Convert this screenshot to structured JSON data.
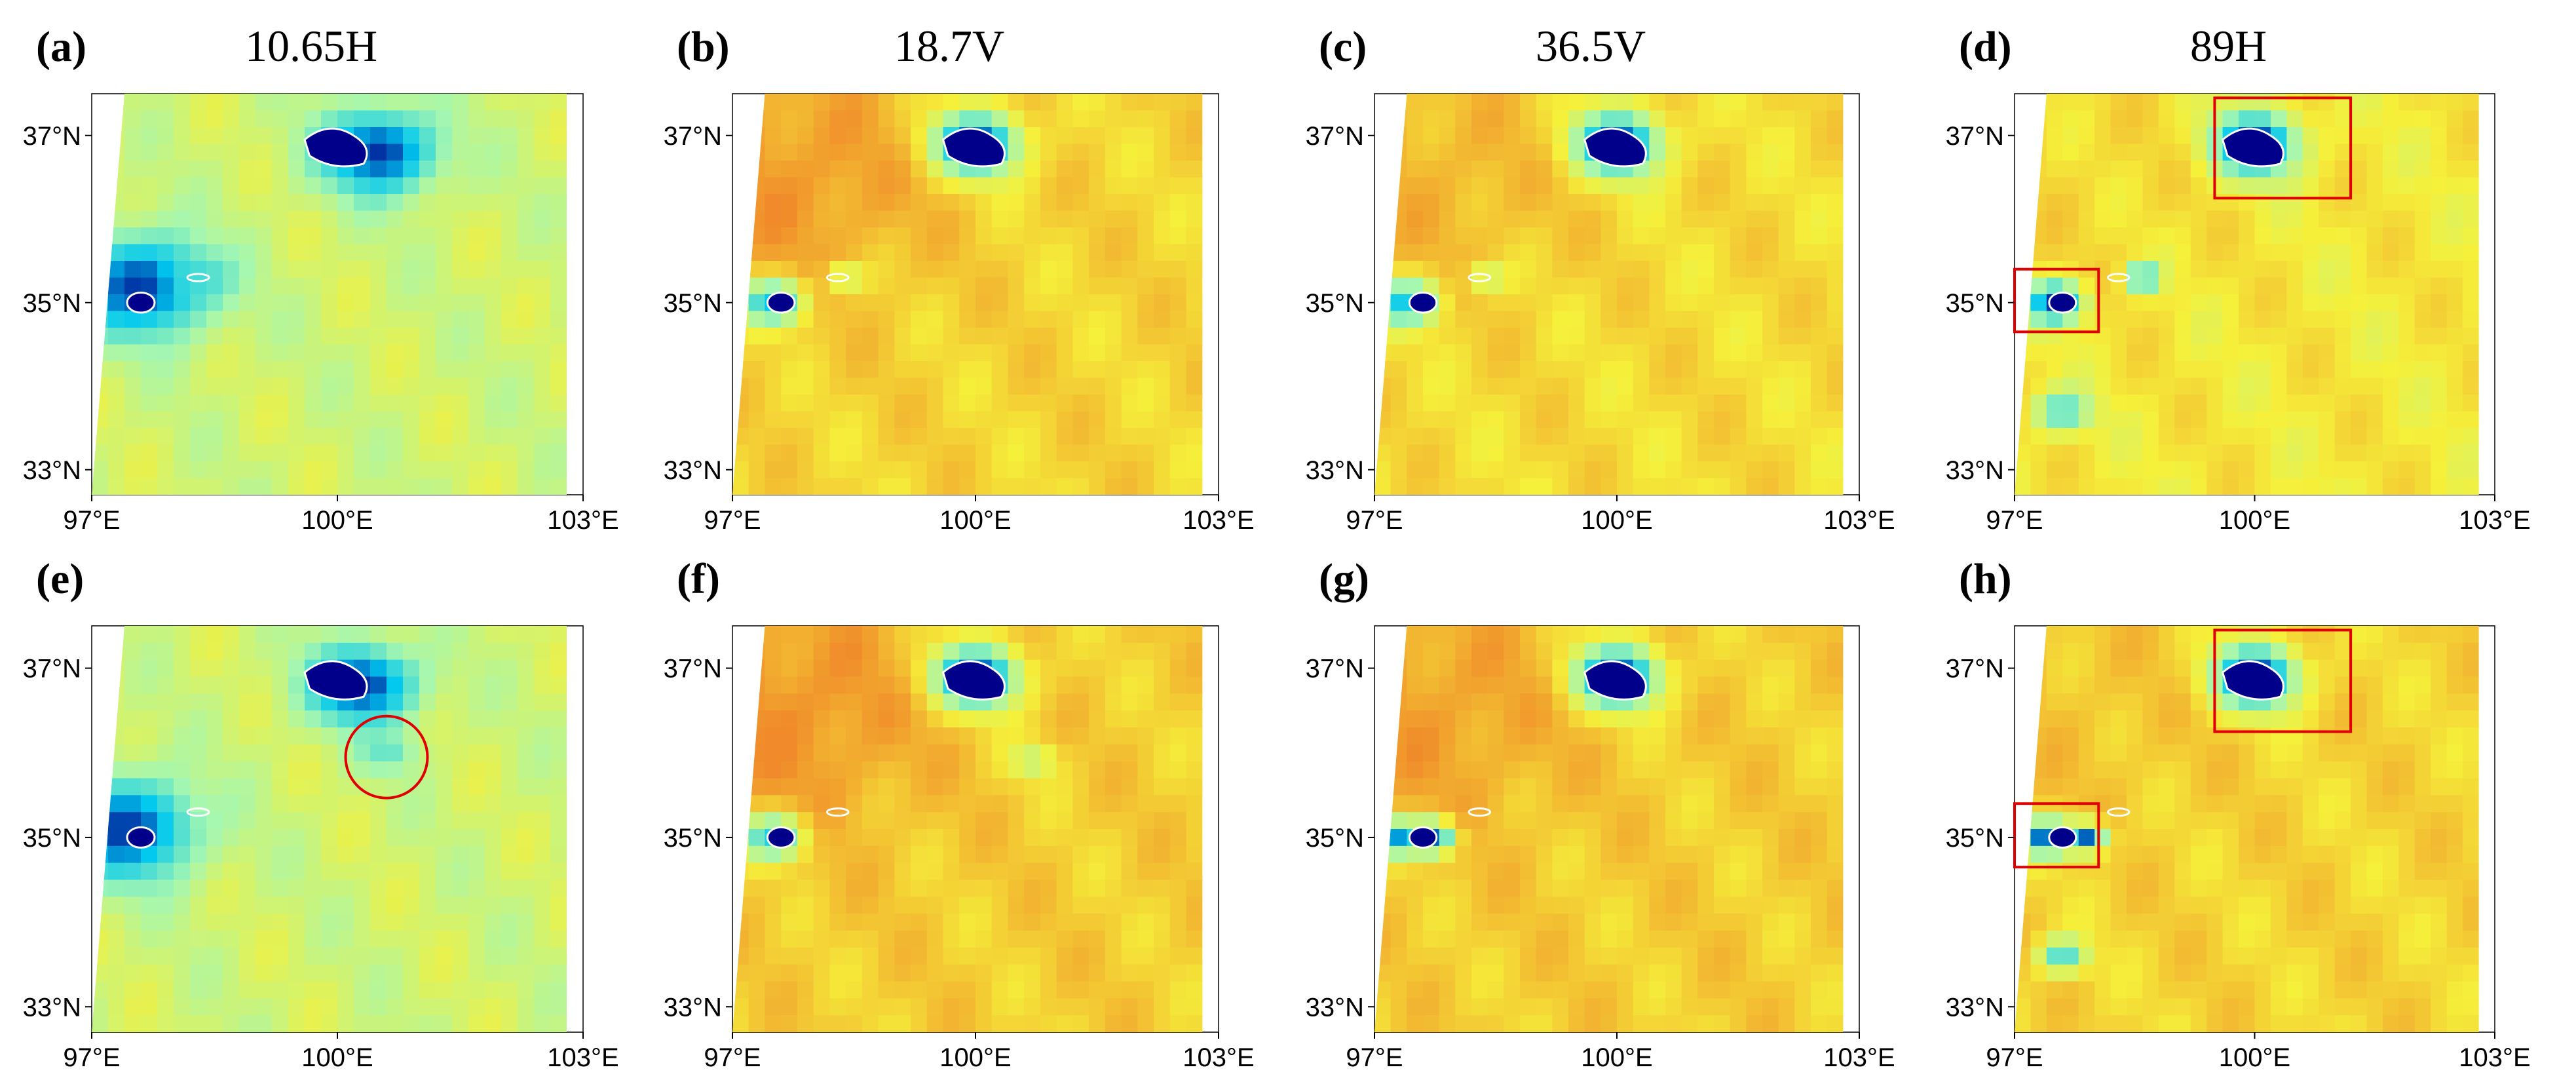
{
  "figure": {
    "column_titles": [
      "10.65H",
      "18.7V",
      "36.5V",
      "89H"
    ]
  },
  "chart_data": [
    {
      "type": "heatmap",
      "panel": "(a)",
      "letter": "a",
      "title": "10.65H",
      "x_ticks": [
        "97°E",
        "100°E",
        "103°E"
      ],
      "y_ticks": [
        "37°N",
        "35°N",
        "33°N"
      ],
      "xlim": [
        97,
        103
      ],
      "ylim": [
        32.7,
        37.5
      ],
      "colormap": {
        "water": "#00008b",
        "cold": "#00c8f0",
        "mid": "#a6f7b0",
        "warm_yellow": "#f5f03a",
        "hot": "#f08a2a"
      },
      "base_level": 0.58,
      "warm_lobe_strength": 0,
      "features": [
        {
          "lon": 100.5,
          "lat": 36.8,
          "value": 0.05,
          "radius": 0.75
        },
        {
          "lon": 97.6,
          "lat": 35.2,
          "value": 0.05,
          "radius": 0.9
        },
        {
          "lon": 98.3,
          "lat": 35.3,
          "value": 0.3,
          "radius": 0.35
        }
      ],
      "highlight_boxes": [],
      "highlight_circles": []
    },
    {
      "type": "heatmap",
      "panel": "(b)",
      "letter": "b",
      "title": "18.7V",
      "x_ticks": [
        "97°E",
        "100°E",
        "103°E"
      ],
      "y_ticks": [
        "37°N",
        "35°N",
        "33°N"
      ],
      "xlim": [
        97,
        103
      ],
      "ylim": [
        32.7,
        37.5
      ],
      "base_level": 0.78,
      "warm_lobe_strength": 0.18,
      "features": [
        {
          "lon": 100.0,
          "lat": 36.9,
          "value": 0.05,
          "radius": 0.55
        },
        {
          "lon": 97.5,
          "lat": 35.0,
          "value": 0.2,
          "radius": 0.4
        },
        {
          "lon": 98.4,
          "lat": 35.3,
          "value": 0.55,
          "radius": 0.25
        }
      ],
      "highlight_boxes": [],
      "highlight_circles": []
    },
    {
      "type": "heatmap",
      "panel": "(c)",
      "letter": "c",
      "title": "36.5V",
      "x_ticks": [
        "97°E",
        "100°E",
        "103°E"
      ],
      "y_ticks": [
        "37°N",
        "35°N",
        "33°N"
      ],
      "xlim": [
        97,
        103
      ],
      "ylim": [
        32.7,
        37.5
      ],
      "base_level": 0.76,
      "warm_lobe_strength": 0.12,
      "features": [
        {
          "lon": 100.0,
          "lat": 36.9,
          "value": 0.05,
          "radius": 0.55
        },
        {
          "lon": 97.4,
          "lat": 35.0,
          "value": 0.2,
          "radius": 0.4
        },
        {
          "lon": 98.4,
          "lat": 35.3,
          "value": 0.55,
          "radius": 0.25
        }
      ],
      "highlight_boxes": [],
      "highlight_circles": []
    },
    {
      "type": "heatmap",
      "panel": "(d)",
      "letter": "d",
      "title": "89H",
      "x_ticks": [
        "97°E",
        "100°E",
        "103°E"
      ],
      "y_ticks": [
        "37°N",
        "35°N",
        "33°N"
      ],
      "xlim": [
        97,
        103
      ],
      "ylim": [
        32.7,
        37.5
      ],
      "base_level": 0.72,
      "warm_lobe_strength": 0.05,
      "features": [
        {
          "lon": 100.0,
          "lat": 36.9,
          "value": 0.03,
          "radius": 0.55
        },
        {
          "lon": 97.5,
          "lat": 35.0,
          "value": 0.05,
          "radius": 0.35
        },
        {
          "lon": 98.6,
          "lat": 35.3,
          "value": 0.1,
          "radius": 0.2
        },
        {
          "lon": 97.6,
          "lat": 33.7,
          "value": 0.3,
          "radius": 0.35
        }
      ],
      "highlight_boxes": [
        {
          "lon0": 99.5,
          "lat0": 36.25,
          "lon1": 101.2,
          "lat1": 37.45
        },
        {
          "lon0": 97.0,
          "lat0": 34.65,
          "lon1": 98.05,
          "lat1": 35.4
        }
      ],
      "highlight_circles": []
    },
    {
      "type": "heatmap",
      "panel": "(e)",
      "letter": "e",
      "title": "",
      "x_ticks": [
        "97°E",
        "100°E",
        "103°E"
      ],
      "y_ticks": [
        "37°N",
        "35°N",
        "33°N"
      ],
      "xlim": [
        97,
        103
      ],
      "ylim": [
        32.7,
        37.5
      ],
      "base_level": 0.58,
      "warm_lobe_strength": 0,
      "features": [
        {
          "lon": 100.3,
          "lat": 36.8,
          "value": 0.05,
          "radius": 0.7
        },
        {
          "lon": 97.4,
          "lat": 35.1,
          "value": 0.05,
          "radius": 0.9
        },
        {
          "lon": 100.6,
          "lat": 36.0,
          "value": 0.35,
          "radius": 0.35
        }
      ],
      "highlight_boxes": [],
      "highlight_circles": [
        {
          "lon": 100.6,
          "lat": 35.95,
          "radius": 0.5
        }
      ]
    },
    {
      "type": "heatmap",
      "panel": "(f)",
      "letter": "f",
      "title": "",
      "x_ticks": [
        "97°E",
        "100°E",
        "103°E"
      ],
      "y_ticks": [
        "37°N",
        "35°N",
        "33°N"
      ],
      "xlim": [
        97,
        103
      ],
      "ylim": [
        32.7,
        37.5
      ],
      "base_level": 0.8,
      "warm_lobe_strength": 0.18,
      "features": [
        {
          "lon": 100.0,
          "lat": 36.9,
          "value": 0.05,
          "radius": 0.55
        },
        {
          "lon": 97.5,
          "lat": 35.0,
          "value": 0.25,
          "radius": 0.4
        },
        {
          "lon": 100.7,
          "lat": 35.9,
          "value": 0.55,
          "radius": 0.3
        }
      ],
      "highlight_boxes": [],
      "highlight_circles": []
    },
    {
      "type": "heatmap",
      "panel": "(g)",
      "letter": "g",
      "title": "",
      "x_ticks": [
        "97°E",
        "100°E",
        "103°E"
      ],
      "y_ticks": [
        "37°N",
        "35°N",
        "33°N"
      ],
      "xlim": [
        97,
        103
      ],
      "ylim": [
        32.7,
        37.5
      ],
      "base_level": 0.8,
      "warm_lobe_strength": 0.14,
      "features": [
        {
          "lon": 100.0,
          "lat": 36.9,
          "value": 0.05,
          "radius": 0.55
        },
        {
          "lon": 97.2,
          "lat": 35.0,
          "value": 0.1,
          "radius": 0.3
        },
        {
          "lon": 97.7,
          "lat": 35.0,
          "value": 0.1,
          "radius": 0.3
        }
      ],
      "highlight_boxes": [],
      "highlight_circles": []
    },
    {
      "type": "heatmap",
      "panel": "(h)",
      "letter": "h",
      "title": "",
      "x_ticks": [
        "97°E",
        "100°E",
        "103°E"
      ],
      "y_ticks": [
        "37°N",
        "35°N",
        "33°N"
      ],
      "xlim": [
        97,
        103
      ],
      "ylim": [
        32.7,
        37.5
      ],
      "base_level": 0.78,
      "warm_lobe_strength": 0.05,
      "features": [
        {
          "lon": 100.0,
          "lat": 36.9,
          "value": 0.03,
          "radius": 0.55
        },
        {
          "lon": 97.4,
          "lat": 35.0,
          "value": 0.05,
          "radius": 0.3
        },
        {
          "lon": 97.9,
          "lat": 35.0,
          "value": 0.1,
          "radius": 0.25
        },
        {
          "lon": 97.6,
          "lat": 33.6,
          "value": 0.3,
          "radius": 0.3
        }
      ],
      "highlight_boxes": [
        {
          "lon0": 99.5,
          "lat0": 36.25,
          "lon1": 101.2,
          "lat1": 37.45
        },
        {
          "lon0": 97.0,
          "lat0": 34.65,
          "lon1": 98.05,
          "lat1": 35.4
        }
      ],
      "highlight_circles": []
    }
  ]
}
